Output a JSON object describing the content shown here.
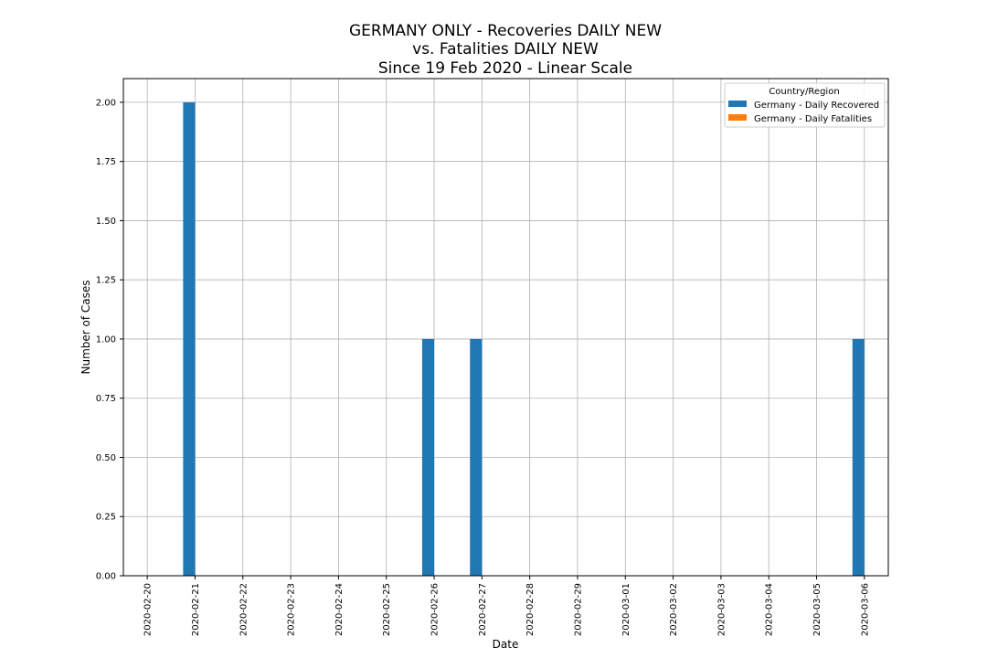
{
  "chart_data": {
    "type": "bar",
    "title_lines": [
      "GERMANY ONLY - Recoveries DAILY NEW",
      "vs. Fatalities DAILY NEW",
      "Since 19 Feb 2020 - Linear Scale"
    ],
    "xlabel": "Date",
    "ylabel": "Number of Cases",
    "categories": [
      "2020-02-20",
      "2020-02-21",
      "2020-02-22",
      "2020-02-23",
      "2020-02-24",
      "2020-02-25",
      "2020-02-26",
      "2020-02-27",
      "2020-02-28",
      "2020-02-29",
      "2020-03-01",
      "2020-03-02",
      "2020-03-03",
      "2020-03-04",
      "2020-03-05",
      "2020-03-06"
    ],
    "y_ticks": [
      "0.00",
      "0.25",
      "0.50",
      "0.75",
      "1.00",
      "1.25",
      "1.50",
      "1.75",
      "2.00"
    ],
    "ylim": [
      0,
      2.1
    ],
    "grid": true,
    "legend": {
      "title": "Country/Region",
      "placement": "top-right"
    },
    "series": [
      {
        "name": "Germany - Daily Recovered",
        "color": "#1f77b4",
        "values": [
          0,
          2,
          0,
          0,
          0,
          0,
          1,
          1,
          0,
          0,
          0,
          0,
          0,
          0,
          0,
          1
        ]
      },
      {
        "name": "Germany - Daily Fatalities",
        "color": "#ff7f0e",
        "values": [
          0,
          0,
          0,
          0,
          0,
          0,
          0,
          0,
          0,
          0,
          0,
          0,
          0,
          0,
          0,
          0
        ]
      }
    ]
  }
}
